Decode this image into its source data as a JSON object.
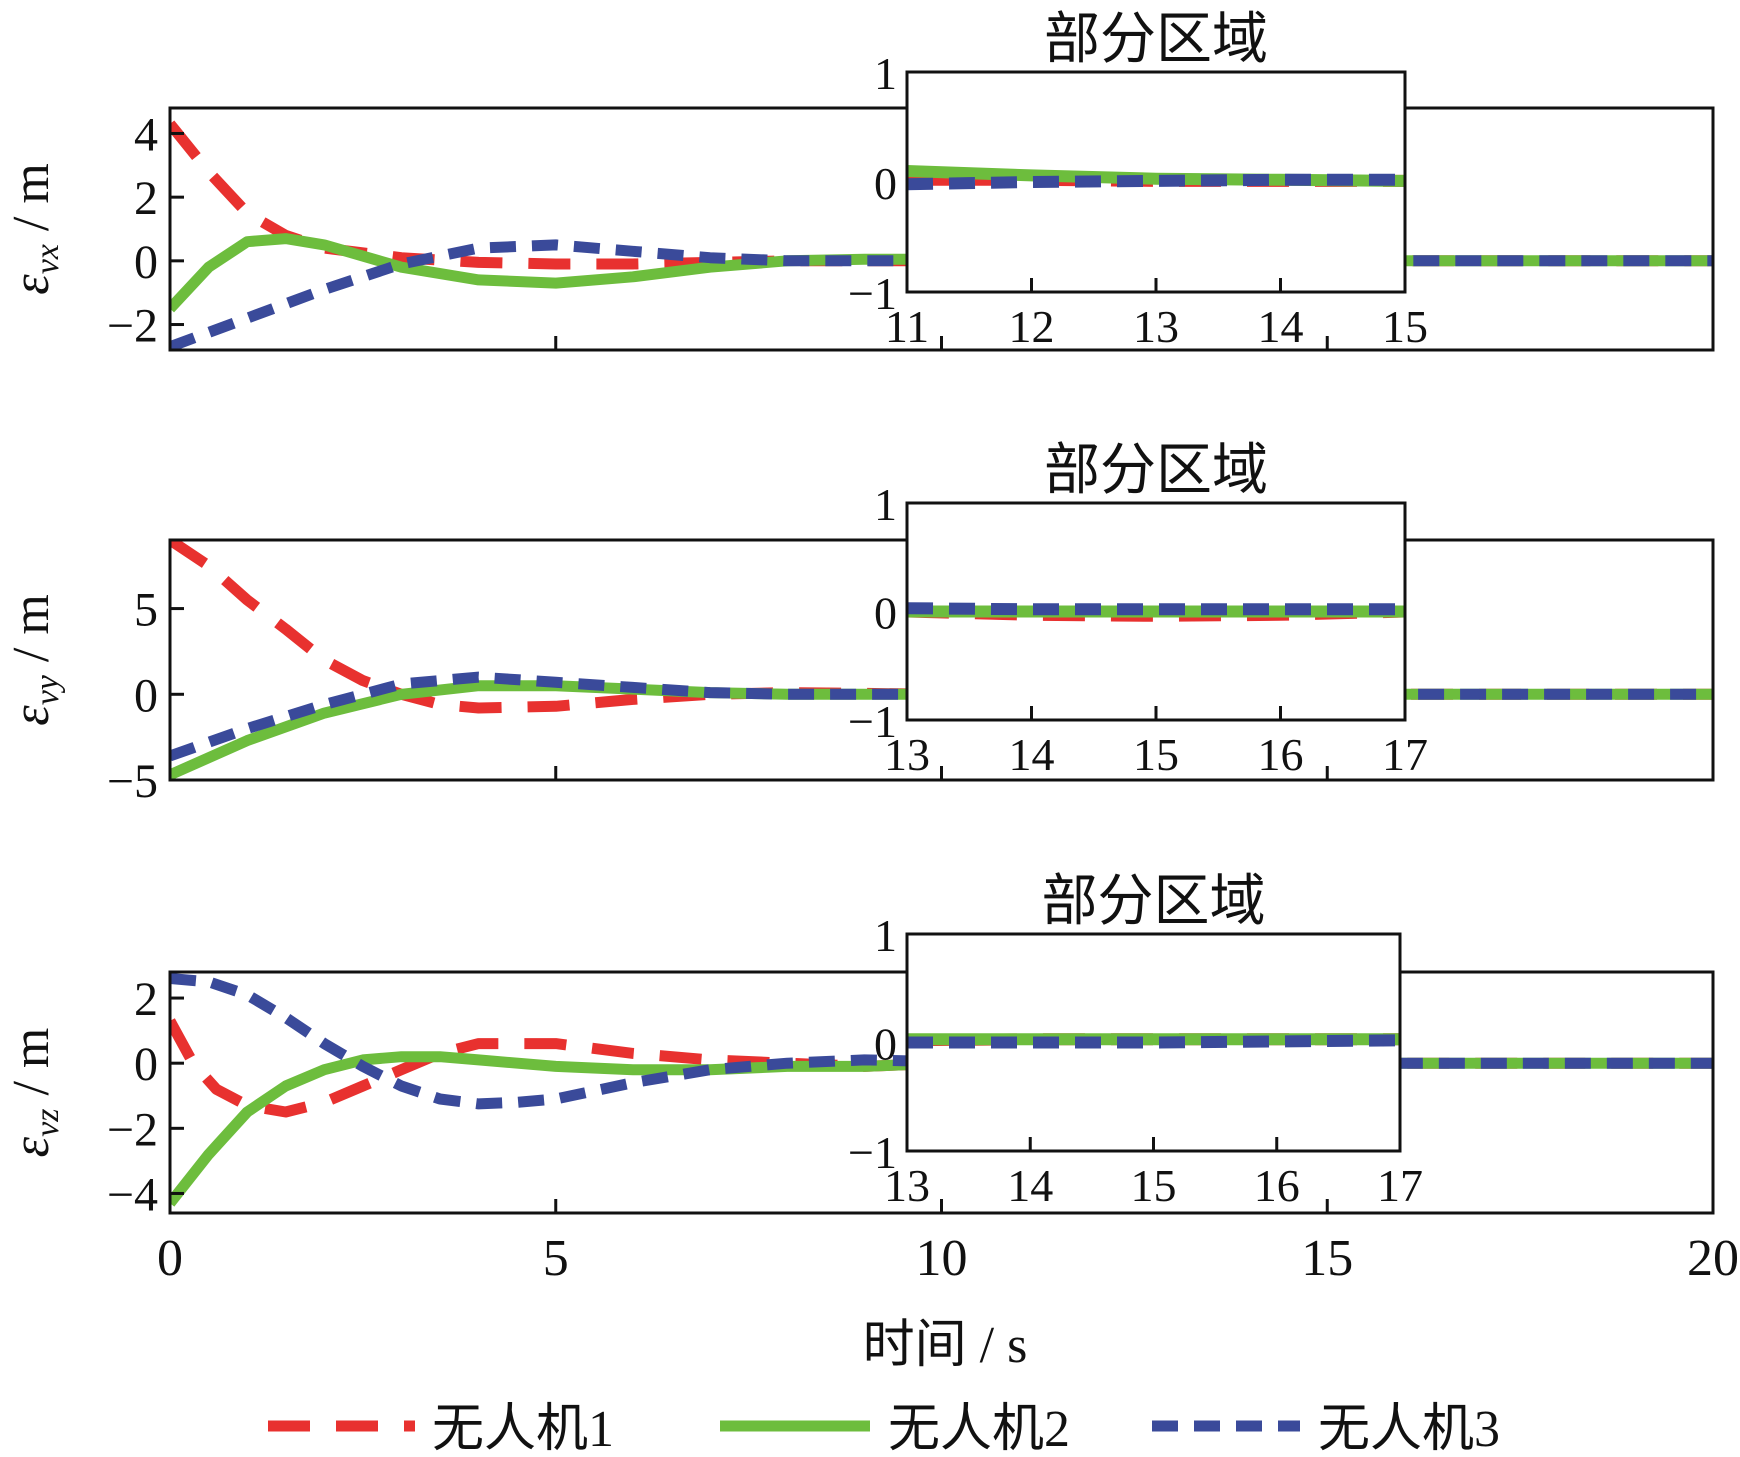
{
  "figure": {
    "xlabel": "时间 / s",
    "xticks": [
      "0",
      "5",
      "10",
      "15",
      "20"
    ],
    "legend": [
      {
        "label": "无人机1",
        "color": "#e8312f",
        "style": "dashed"
      },
      {
        "label": "无人机2",
        "color": "#6dbd3d",
        "style": "solid"
      },
      {
        "label": "无人机3",
        "color": "#3a4a9a",
        "style": "dashed"
      }
    ]
  },
  "chart_data": [
    {
      "type": "line",
      "ylabel": "ε_vx / m",
      "xlim": [
        0,
        20
      ],
      "ylim": [
        -2.8,
        4.8
      ],
      "yticks": [
        4,
        2,
        0,
        -2
      ],
      "grid": false,
      "series": [
        {
          "name": "无人机1",
          "x": [
            0,
            0.5,
            1,
            1.5,
            2,
            3,
            4,
            5,
            6,
            7,
            8,
            9,
            10,
            12,
            15,
            20
          ],
          "y": [
            4.3,
            2.8,
            1.5,
            0.8,
            0.4,
            0.1,
            -0.05,
            -0.1,
            -0.1,
            -0.05,
            0,
            0,
            0,
            0,
            0,
            0
          ]
        },
        {
          "name": "无人机2",
          "x": [
            0,
            0.5,
            1,
            1.5,
            2,
            3,
            4,
            5,
            6,
            7,
            8,
            9,
            10,
            12,
            15,
            20
          ],
          "y": [
            -1.5,
            -0.2,
            0.6,
            0.7,
            0.5,
            -0.2,
            -0.6,
            -0.7,
            -0.5,
            -0.2,
            0,
            0.05,
            0.05,
            0,
            0,
            0
          ]
        },
        {
          "name": "无人机3",
          "x": [
            0,
            1,
            2,
            3,
            4,
            5,
            6,
            7,
            8,
            9,
            10,
            12,
            15,
            20
          ],
          "y": [
            -2.7,
            -1.8,
            -0.9,
            -0.1,
            0.4,
            0.5,
            0.3,
            0.1,
            0,
            0,
            0,
            0,
            0,
            0
          ]
        }
      ],
      "inset": {
        "title": "部分区域",
        "xlim": [
          11,
          15
        ],
        "ylim": [
          -1,
          1
        ],
        "xticks": [
          11,
          12,
          13,
          14,
          15
        ],
        "yticks": [
          1,
          0,
          -1
        ],
        "series": [
          {
            "name": "无人机1",
            "x": [
              11,
              12,
              13,
              14,
              15
            ],
            "y": [
              0.02,
              0.02,
              0.01,
              0.01,
              0.01
            ]
          },
          {
            "name": "无人机2",
            "x": [
              11,
              12,
              13,
              14,
              15
            ],
            "y": [
              0.1,
              0.06,
              0.03,
              0.02,
              0.01
            ]
          },
          {
            "name": "无人机3",
            "x": [
              11,
              12,
              13,
              14,
              15
            ],
            "y": [
              -0.02,
              0,
              0.01,
              0.02,
              0.02
            ]
          }
        ]
      }
    },
    {
      "type": "line",
      "ylabel": "ε_vy / m",
      "xlim": [
        0,
        20
      ],
      "ylim": [
        -5,
        9
      ],
      "yticks": [
        5,
        0,
        -5
      ],
      "grid": false,
      "series": [
        {
          "name": "无人机1",
          "x": [
            0,
            0.5,
            1,
            1.5,
            2,
            2.5,
            3,
            3.5,
            4,
            5,
            6,
            7,
            8,
            9,
            10,
            12,
            15,
            20
          ],
          "y": [
            9,
            7.5,
            5.5,
            3.8,
            2,
            0.8,
            0,
            -0.6,
            -0.8,
            -0.7,
            -0.3,
            0,
            0.1,
            0.05,
            0,
            0,
            0,
            0
          ]
        },
        {
          "name": "无人机2",
          "x": [
            0,
            1,
            2,
            3,
            4,
            5,
            6,
            7,
            8,
            9,
            10,
            12,
            15,
            20
          ],
          "y": [
            -4.7,
            -2.7,
            -1.1,
            0,
            0.5,
            0.5,
            0.3,
            0.1,
            0,
            0,
            0,
            0,
            0,
            0
          ]
        },
        {
          "name": "无人机3",
          "x": [
            0,
            1,
            2,
            3,
            4,
            5,
            6,
            7,
            8,
            9,
            10,
            12,
            15,
            20
          ],
          "y": [
            -3.6,
            -2,
            -0.6,
            0.6,
            1,
            0.7,
            0.4,
            0.1,
            0,
            0,
            0,
            0,
            0,
            0
          ]
        }
      ],
      "inset": {
        "title": "部分区域",
        "xlim": [
          13,
          17
        ],
        "ylim": [
          -1,
          1
        ],
        "xticks": [
          13,
          14,
          15,
          16,
          17
        ],
        "yticks": [
          1,
          0,
          -1
        ],
        "series": [
          {
            "name": "无人机1",
            "x": [
              13,
              14,
              15,
              16,
              17
            ],
            "y": [
              0,
              -0.03,
              -0.04,
              -0.03,
              0
            ]
          },
          {
            "name": "无人机2",
            "x": [
              13,
              14,
              15,
              16,
              17
            ],
            "y": [
              0,
              0,
              0,
              0,
              0
            ]
          },
          {
            "name": "无人机3",
            "x": [
              13,
              14,
              15,
              16,
              17
            ],
            "y": [
              0.03,
              0.02,
              0.02,
              0.02,
              0.02
            ]
          }
        ]
      }
    },
    {
      "type": "line",
      "ylabel": "ε_vz / m",
      "xlim": [
        0,
        20
      ],
      "ylim": [
        -4.6,
        2.8
      ],
      "yticks": [
        2,
        0,
        -2,
        -4
      ],
      "grid": false,
      "series": [
        {
          "name": "无人机1",
          "x": [
            0,
            0.3,
            0.6,
            1,
            1.5,
            2,
            2.5,
            3,
            3.5,
            4,
            5,
            6,
            7,
            8,
            9,
            10,
            12,
            15,
            20
          ],
          "y": [
            1.3,
            0,
            -0.8,
            -1.3,
            -1.5,
            -1.2,
            -0.7,
            -0.2,
            0.3,
            0.6,
            0.6,
            0.3,
            0.1,
            0,
            -0.1,
            0,
            0,
            0,
            0
          ]
        },
        {
          "name": "无人机2",
          "x": [
            0,
            0.5,
            1,
            1.5,
            2,
            2.5,
            3,
            3.5,
            4,
            5,
            6,
            7,
            8,
            9,
            10,
            12,
            15,
            20
          ],
          "y": [
            -4.3,
            -2.8,
            -1.5,
            -0.7,
            -0.2,
            0.1,
            0.2,
            0.2,
            0.1,
            -0.1,
            -0.2,
            -0.2,
            -0.1,
            -0.1,
            0,
            0,
            0,
            0
          ]
        },
        {
          "name": "无人机3",
          "x": [
            0,
            0.5,
            1,
            1.5,
            2,
            2.5,
            3,
            3.5,
            4,
            4.5,
            5,
            6,
            7,
            8,
            9,
            10,
            12,
            15,
            20
          ],
          "y": [
            2.6,
            2.5,
            2.1,
            1.4,
            0.6,
            -0.1,
            -0.7,
            -1.1,
            -1.25,
            -1.2,
            -1.1,
            -0.6,
            -0.2,
            0,
            0.1,
            0.05,
            0,
            0,
            0
          ]
        }
      ],
      "inset": {
        "title": "部分区域",
        "xlim": [
          13,
          17
        ],
        "ylim": [
          -1,
          1
        ],
        "xticks": [
          13,
          14,
          15,
          16,
          17
        ],
        "yticks": [
          1,
          0,
          -1
        ],
        "series": [
          {
            "name": "无人机1",
            "x": [
              13,
              14,
              15,
              16,
              17
            ],
            "y": [
              0.02,
              0.03,
              0.03,
              0.03,
              0.03
            ]
          },
          {
            "name": "无人机2",
            "x": [
              13,
              14,
              15,
              16,
              17
            ],
            "y": [
              0.03,
              0.03,
              0.03,
              0.03,
              0.03
            ]
          },
          {
            "name": "无人机3",
            "x": [
              13,
              14,
              15,
              16,
              17
            ],
            "y": [
              0,
              0,
              0,
              0.01,
              0.02
            ]
          }
        ]
      }
    }
  ]
}
